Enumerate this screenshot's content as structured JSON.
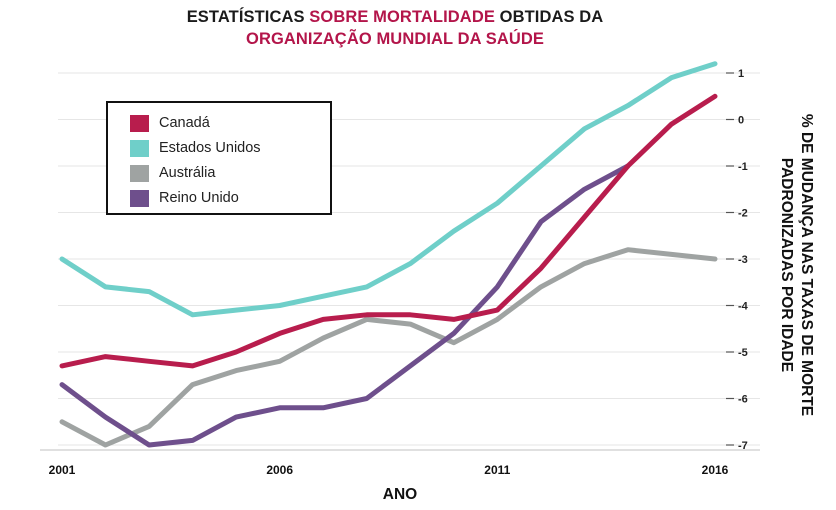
{
  "chart_data": {
    "type": "line",
    "title_line1": [
      {
        "text": "ESTATÍSTICAS ",
        "accent": false
      },
      {
        "text": "SOBRE MORTALIDADE",
        "accent": true
      },
      {
        "text": " OBTIDAS DA",
        "accent": false
      }
    ],
    "title_line2": "ORGANIZAÇÃO MUNDIAL DA SAÚDE",
    "xlabel": "ANO",
    "ylabel_lines": [
      "% DE MUDANÇA NAS TAXAS DE MORTE",
      "PADRONIZADAS POR IDADE"
    ],
    "x_ticks": [
      "2001",
      "2006",
      "2011",
      "2016"
    ],
    "y_ticks": [
      "1",
      "0",
      "-1",
      "-2",
      "-3",
      "-4",
      "-5",
      "-6",
      "-7"
    ],
    "xlim": [
      2001,
      2016
    ],
    "ylim": [
      -7,
      1
    ],
    "series": [
      {
        "name": "Canadá",
        "color": "#b81d4d",
        "x": [
          2001,
          2002,
          2003,
          2004,
          2005,
          2006,
          2007,
          2008,
          2009,
          2010,
          2011,
          2012,
          2013,
          2014,
          2015,
          2016
        ],
        "y": [
          -5.3,
          -5.1,
          -5.2,
          -5.3,
          -5.0,
          -4.6,
          -4.3,
          -4.2,
          -4.2,
          -4.3,
          -4.1,
          -3.2,
          -2.1,
          -1.0,
          -0.1,
          0.5
        ]
      },
      {
        "name": "Estados Unidos",
        "color": "#6fcfc9",
        "x": [
          2001,
          2002,
          2003,
          2004,
          2005,
          2006,
          2007,
          2008,
          2009,
          2010,
          2011,
          2012,
          2013,
          2014,
          2015,
          2016
        ],
        "y": [
          -3.0,
          -3.6,
          -3.7,
          -4.2,
          -4.1,
          -4.0,
          -3.8,
          -3.6,
          -3.1,
          -2.4,
          -1.8,
          -1.0,
          -0.2,
          0.3,
          0.9,
          1.2
        ]
      },
      {
        "name": "Austrália",
        "color": "#9fa3a2",
        "x": [
          2001,
          2002,
          2003,
          2004,
          2005,
          2006,
          2007,
          2008,
          2009,
          2010,
          2011,
          2012,
          2013,
          2014,
          2015,
          2016
        ],
        "y": [
          -6.5,
          -7.0,
          -6.6,
          -5.7,
          -5.4,
          -5.2,
          -4.7,
          -4.3,
          -4.4,
          -4.8,
          -4.3,
          -3.6,
          -3.1,
          -2.8,
          -2.9,
          -3.0
        ]
      },
      {
        "name": "Reino Unido",
        "color": "#6e4f8c",
        "x": [
          2001,
          2002,
          2003,
          2004,
          2005,
          2006,
          2007,
          2008,
          2009,
          2010,
          2011,
          2012,
          2013,
          2014
        ],
        "y": [
          -5.7,
          -6.4,
          -7.0,
          -6.9,
          -6.4,
          -6.2,
          -6.2,
          -6.0,
          -5.3,
          -4.6,
          -3.6,
          -2.2,
          -1.5,
          -1.0
        ]
      }
    ],
    "grid": true,
    "legend_position": "top-left"
  }
}
